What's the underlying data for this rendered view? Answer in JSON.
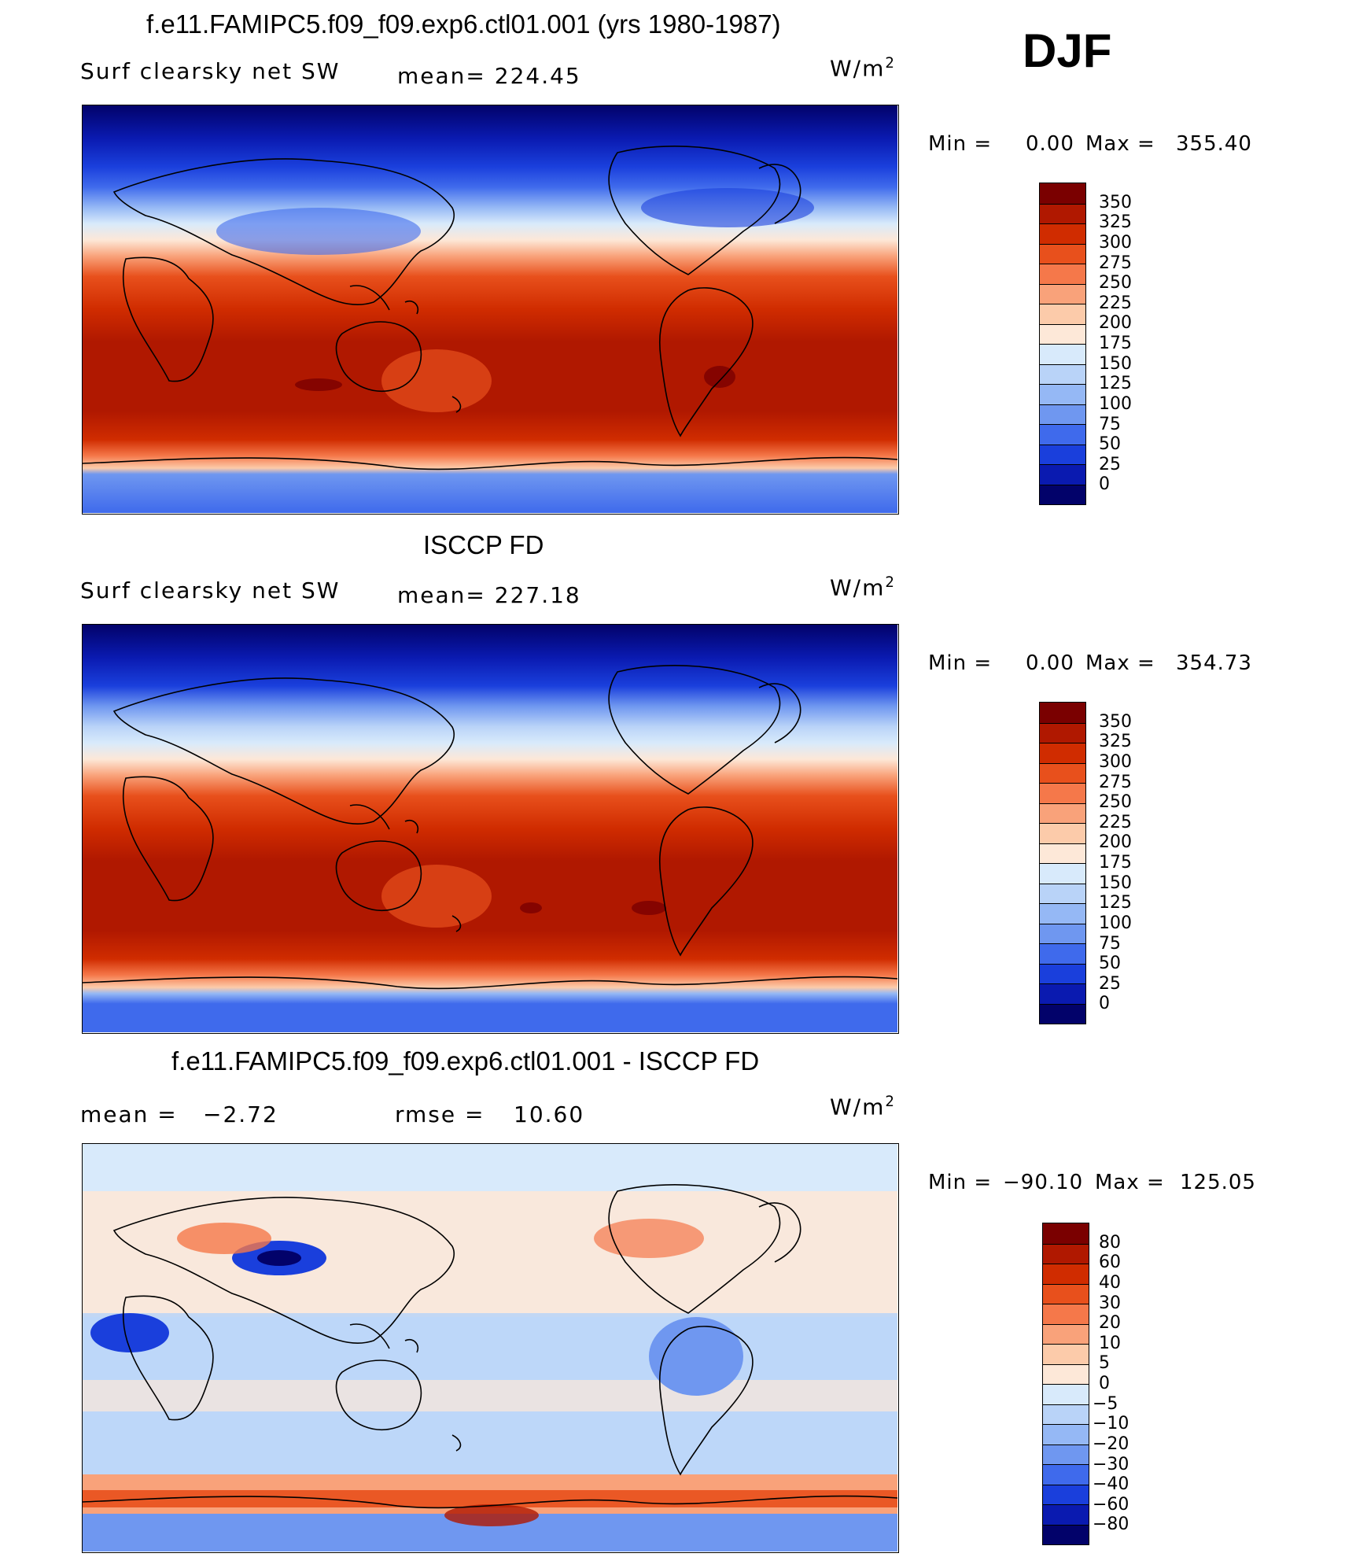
{
  "season": "DJF",
  "units": "W/m",
  "units_sup": "2",
  "panels": [
    {
      "title": "f.e11.FAMIPC5.f09_f09.exp6.ctl01.001 (yrs 1980-1987)",
      "variable": "Surf clearsky net SW",
      "mean_label": "mean= 224.45",
      "min_label": "Min =",
      "min_value": "0.00",
      "max_label": "Max =",
      "max_value": "355.40",
      "color_levels": [
        "350",
        "325",
        "300",
        "275",
        "250",
        "225",
        "200",
        "175",
        "150",
        "125",
        "100",
        "75",
        "50",
        "25",
        "0"
      ]
    },
    {
      "title": "ISCCP FD",
      "variable": "Surf clearsky net SW",
      "mean_label": "mean= 227.18",
      "min_label": "Min =",
      "min_value": "0.00",
      "max_label": "Max =",
      "max_value": "354.73",
      "color_levels": [
        "350",
        "325",
        "300",
        "275",
        "250",
        "225",
        "200",
        "175",
        "150",
        "125",
        "100",
        "75",
        "50",
        "25",
        "0"
      ]
    },
    {
      "title": "f.e11.FAMIPC5.f09_f09.exp6.ctl01.001 - ISCCP FD",
      "mean_label": "mean =",
      "mean_value": "−2.72",
      "rmse_label": "rmse =",
      "rmse_value": "10.60",
      "min_label": "Min =",
      "min_value": "−90.10",
      "max_label": "Max =",
      "max_value": "125.05",
      "color_levels": [
        "80",
        "60",
        "40",
        "30",
        "20",
        "10",
        "5",
        "0",
        "−5",
        "−10",
        "−20",
        "−30",
        "−40",
        "−60",
        "−80"
      ]
    }
  ],
  "colors": {
    "abs_scale": [
      "#7a0000",
      "#b01800",
      "#d02c00",
      "#e8501c",
      "#f5784a",
      "#f9a27a",
      "#fccbaa",
      "#fde8d8",
      "#d8eafb",
      "#b9d3f8",
      "#95b8f5",
      "#6f97f0",
      "#3f6aec",
      "#1a3fdc",
      "#0a1ab0",
      "#02026a"
    ],
    "diff_scale": [
      "#7a0000",
      "#b01800",
      "#d02c00",
      "#e8501c",
      "#f5784a",
      "#f9a27a",
      "#fccbaa",
      "#fde8d8",
      "#d8eafb",
      "#b9d3f8",
      "#95b8f5",
      "#6f97f0",
      "#3f6aec",
      "#1a3fdc",
      "#0a1ab0",
      "#02026a"
    ],
    "coast": "#000000"
  }
}
